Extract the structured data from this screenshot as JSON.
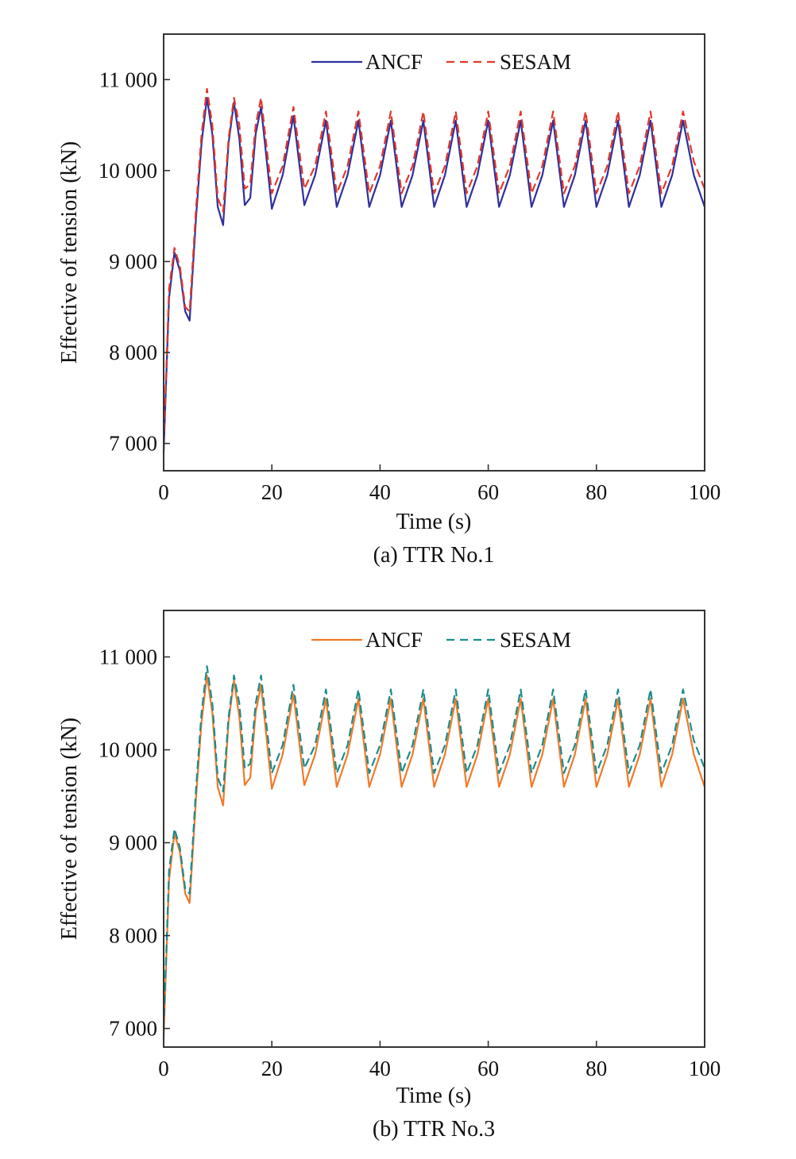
{
  "colors": {
    "panel_a_ancf": "#2f2f9e",
    "panel_a_sesam": "#e0392b",
    "panel_b_ancf": "#f07a2a",
    "panel_b_sesam": "#1d8c8c",
    "axes": "#333333"
  },
  "chart_data": [
    {
      "type": "line",
      "caption": "(a) TTR No.1",
      "xlabel": "Time (s)",
      "ylabel": "Effective of tension (kN)",
      "xlim": [
        0,
        100
      ],
      "ylim": [
        6700,
        11500
      ],
      "x_ticks": [
        0,
        20,
        40,
        60,
        80,
        100
      ],
      "x_tick_labels": [
        "0",
        "20",
        "40",
        "60",
        "80",
        "100"
      ],
      "y_ticks": [
        7000,
        8000,
        9000,
        10000,
        11000
      ],
      "y_tick_labels": [
        "7 000",
        "8 000",
        "9 000",
        "10 000",
        "11 000"
      ],
      "grid": false,
      "legend": "top-center",
      "series": [
        {
          "name": "ANCF",
          "style": "solid",
          "x": [
            0,
            1,
            2,
            3,
            4,
            4.8,
            6,
            7,
            8,
            9,
            10,
            11,
            12,
            13,
            14,
            15,
            16,
            17,
            18,
            20,
            22,
            24,
            26,
            28,
            30,
            32,
            34,
            36,
            38,
            40,
            42,
            44,
            46,
            48,
            50,
            52,
            54,
            56,
            58,
            60,
            62,
            64,
            66,
            68,
            70,
            72,
            74,
            76,
            78,
            80,
            82,
            84,
            86,
            88,
            90,
            92,
            94,
            96,
            98,
            100
          ],
          "y": [
            6900,
            8600,
            9100,
            8900,
            8450,
            8350,
            9500,
            10300,
            10800,
            10400,
            9600,
            9400,
            10300,
            10750,
            10350,
            9620,
            9700,
            10400,
            10700,
            9580,
            9950,
            10600,
            9620,
            9950,
            10550,
            9600,
            9950,
            10550,
            9600,
            9950,
            10550,
            9600,
            9950,
            10550,
            9600,
            9950,
            10550,
            9600,
            9950,
            10550,
            9600,
            9950,
            10550,
            9600,
            9950,
            10550,
            9600,
            9950,
            10550,
            9600,
            9950,
            10550,
            9600,
            9950,
            10550,
            9600,
            9950,
            10550,
            9950,
            9600
          ]
        },
        {
          "name": "SESAM",
          "style": "dashed",
          "x": [
            0,
            1,
            2,
            3,
            4,
            4.8,
            6,
            7,
            8,
            9,
            10,
            11,
            12,
            13,
            14,
            15,
            16,
            17,
            18,
            20,
            22,
            24,
            26,
            28,
            30,
            32,
            34,
            36,
            38,
            40,
            42,
            44,
            46,
            48,
            50,
            52,
            54,
            56,
            58,
            60,
            62,
            64,
            66,
            68,
            70,
            72,
            74,
            76,
            78,
            80,
            82,
            84,
            86,
            88,
            90,
            92,
            94,
            96,
            98,
            100
          ],
          "y": [
            7000,
            8700,
            9150,
            8950,
            8500,
            8450,
            9600,
            10400,
            10900,
            10500,
            9700,
            9550,
            10350,
            10800,
            10500,
            9800,
            9850,
            10500,
            10800,
            9750,
            10050,
            10700,
            9800,
            10050,
            10650,
            9750,
            10050,
            10650,
            9750,
            10050,
            10650,
            9750,
            10050,
            10650,
            9750,
            10050,
            10650,
            9750,
            10050,
            10650,
            9750,
            10050,
            10650,
            9750,
            10050,
            10650,
            9750,
            10050,
            10650,
            9750,
            10050,
            10650,
            9750,
            10050,
            10650,
            9750,
            10050,
            10650,
            10100,
            9800
          ]
        }
      ]
    },
    {
      "type": "line",
      "caption": "(b) TTR No.3",
      "xlabel": "Time (s)",
      "ylabel": "Effective of tension (kN)",
      "xlim": [
        0,
        100
      ],
      "ylim": [
        6800,
        11500
      ],
      "x_ticks": [
        0,
        20,
        40,
        60,
        80,
        100
      ],
      "x_tick_labels": [
        "0",
        "20",
        "40",
        "60",
        "80",
        "100"
      ],
      "y_ticks": [
        7000,
        8000,
        9000,
        10000,
        11000
      ],
      "y_tick_labels": [
        "7 000",
        "8 000",
        "9 000",
        "10 000",
        "11 000"
      ],
      "grid": false,
      "legend": "top-center",
      "series": [
        {
          "name": "ANCF",
          "style": "solid",
          "x": [
            0,
            1,
            2,
            3,
            4,
            4.8,
            6,
            7,
            8,
            9,
            10,
            11,
            12,
            13,
            14,
            15,
            16,
            17,
            18,
            20,
            22,
            24,
            26,
            28,
            30,
            32,
            34,
            36,
            38,
            40,
            42,
            44,
            46,
            48,
            50,
            52,
            54,
            56,
            58,
            60,
            62,
            64,
            66,
            68,
            70,
            72,
            74,
            76,
            78,
            80,
            82,
            84,
            86,
            88,
            90,
            92,
            94,
            96,
            98,
            100
          ],
          "y": [
            6900,
            8600,
            9100,
            8900,
            8450,
            8350,
            9500,
            10300,
            10800,
            10400,
            9600,
            9400,
            10300,
            10750,
            10350,
            9620,
            9700,
            10400,
            10700,
            9580,
            9950,
            10600,
            9620,
            9950,
            10550,
            9600,
            9950,
            10550,
            9600,
            9950,
            10550,
            9600,
            9950,
            10550,
            9600,
            9950,
            10550,
            9600,
            9950,
            10550,
            9600,
            9950,
            10550,
            9600,
            9950,
            10550,
            9600,
            9950,
            10550,
            9600,
            9950,
            10550,
            9600,
            9950,
            10550,
            9600,
            9950,
            10550,
            9950,
            9600
          ]
        },
        {
          "name": "SESAM",
          "style": "dashed",
          "x": [
            0,
            1,
            2,
            3,
            4,
            4.8,
            6,
            7,
            8,
            9,
            10,
            11,
            12,
            13,
            14,
            15,
            16,
            17,
            18,
            20,
            22,
            24,
            26,
            28,
            30,
            32,
            34,
            36,
            38,
            40,
            42,
            44,
            46,
            48,
            50,
            52,
            54,
            56,
            58,
            60,
            62,
            64,
            66,
            68,
            70,
            72,
            74,
            76,
            78,
            80,
            82,
            84,
            86,
            88,
            90,
            92,
            94,
            96,
            98,
            100
          ],
          "y": [
            7000,
            8700,
            9150,
            8950,
            8500,
            8450,
            9600,
            10400,
            10900,
            10500,
            9700,
            9550,
            10350,
            10800,
            10500,
            9800,
            9850,
            10500,
            10800,
            9750,
            10050,
            10700,
            9800,
            10050,
            10650,
            9750,
            10050,
            10650,
            9750,
            10050,
            10650,
            9750,
            10050,
            10650,
            9750,
            10050,
            10650,
            9750,
            10050,
            10650,
            9750,
            10050,
            10650,
            9750,
            10050,
            10650,
            9750,
            10050,
            10650,
            9750,
            10050,
            10650,
            9750,
            10050,
            10650,
            9750,
            10050,
            10650,
            10100,
            9800
          ]
        }
      ]
    }
  ]
}
